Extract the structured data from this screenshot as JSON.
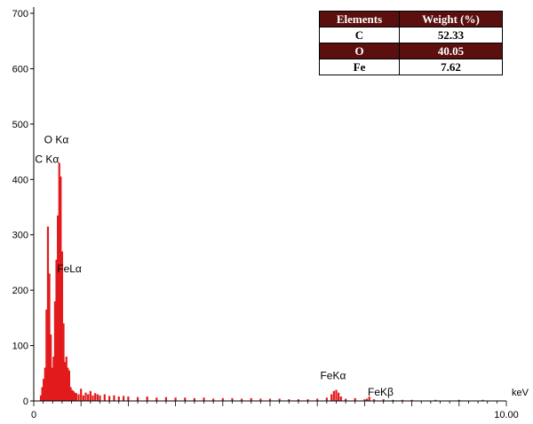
{
  "chart_data": {
    "type": "bar",
    "title": "",
    "xlabel": "keV",
    "ylabel": "",
    "xlim": [
      0,
      10.0
    ],
    "ylim": [
      0,
      700
    ],
    "x_tick_labels": [
      "0",
      "10.00"
    ],
    "y_ticks": [
      0,
      100,
      200,
      300,
      400,
      500,
      600,
      700
    ],
    "color": "#e31a1c",
    "series": [
      {
        "x": [
          0.15,
          0.18,
          0.21,
          0.24,
          0.27,
          0.3,
          0.33,
          0.36,
          0.39,
          0.42,
          0.45,
          0.48,
          0.51,
          0.54,
          0.57,
          0.6,
          0.63,
          0.66,
          0.69,
          0.72,
          0.75,
          0.78,
          0.81,
          0.84,
          0.87,
          0.9,
          0.95,
          1.0,
          1.05,
          1.1,
          1.15,
          1.2,
          1.25,
          1.3,
          1.35,
          1.4,
          1.5,
          1.6,
          1.7,
          1.8,
          1.9,
          2.0,
          2.2,
          2.4,
          2.6,
          2.8,
          3.0,
          3.2,
          3.4,
          3.6,
          3.8,
          4.0,
          4.2,
          4.4,
          4.6,
          4.8,
          5.0,
          5.2,
          5.4,
          5.6,
          5.8,
          6.0,
          6.2,
          6.3,
          6.35,
          6.4,
          6.45,
          6.5,
          6.6,
          6.8,
          7.0,
          7.05,
          7.1,
          7.2,
          7.4,
          7.6,
          7.8,
          8.0,
          8.5,
          9.0,
          9.5
        ],
        "y": [
          10,
          25,
          40,
          60,
          165,
          315,
          230,
          120,
          60,
          80,
          180,
          255,
          335,
          430,
          405,
          270,
          140,
          70,
          80,
          60,
          55,
          25,
          20,
          18,
          15,
          14,
          12,
          22,
          10,
          15,
          12,
          18,
          10,
          14,
          12,
          10,
          12,
          9,
          10,
          8,
          9,
          8,
          7,
          8,
          6,
          7,
          6,
          6,
          5,
          6,
          4,
          5,
          5,
          4,
          5,
          4,
          4,
          4,
          3,
          3,
          3,
          4,
          6,
          12,
          18,
          20,
          15,
          8,
          4,
          5,
          3,
          4,
          8,
          3,
          3,
          2,
          2,
          2,
          2,
          2,
          2
        ]
      }
    ],
    "annotations": [
      {
        "text": "O Kα",
        "x": 0.52,
        "y": 430
      },
      {
        "text": "C Kα",
        "x": 0.27,
        "y": 315
      },
      {
        "text": "FeLα",
        "x": 0.7,
        "y": 255
      },
      {
        "text": "FeKα",
        "x": 6.4,
        "y": 20
      },
      {
        "text": "FeKβ",
        "x": 7.05,
        "y": 8
      }
    ]
  },
  "composition_table": {
    "headers": [
      "Elements",
      "Weight (%)"
    ],
    "rows": [
      {
        "element": "C",
        "weight": "52.33"
      },
      {
        "element": "O",
        "weight": "40.05"
      },
      {
        "element": "Fe",
        "weight": "7.62"
      }
    ]
  }
}
